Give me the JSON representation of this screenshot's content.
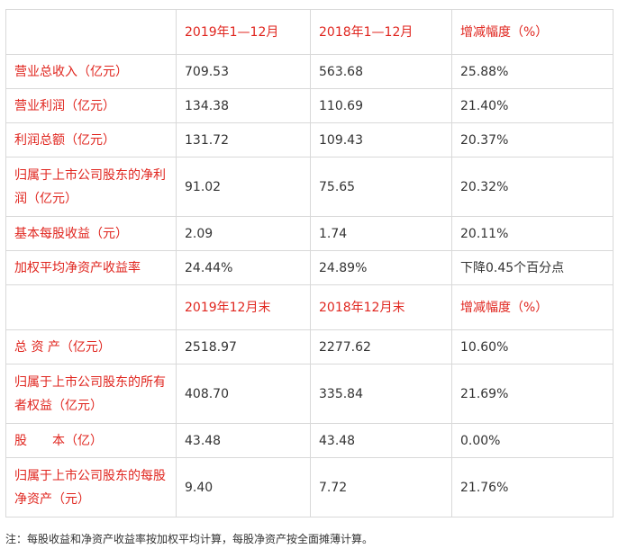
{
  "header1": {
    "corner": "",
    "col1": "2019年1—12月",
    "col2": "2018年1—12月",
    "col3": "增减幅度（%）"
  },
  "rows1": [
    {
      "label": "营业总收入（亿元）",
      "v1": "709.53",
      "v2": "563.68",
      "v3": "25.88%"
    },
    {
      "label": "营业利润（亿元）",
      "v1": "134.38",
      "v2": "110.69",
      "v3": "21.40%"
    },
    {
      "label": "利润总额（亿元）",
      "v1": "131.72",
      "v2": "109.43",
      "v3": "20.37%"
    },
    {
      "label": "归属于上市公司股东的净利润（亿元）",
      "v1": "91.02",
      "v2": "75.65",
      "v3": "20.32%"
    },
    {
      "label": "基本每股收益（元）",
      "v1": "2.09",
      "v2": "1.74",
      "v3": "20.11%"
    },
    {
      "label": "加权平均净资产收益率",
      "v1": "24.44%",
      "v2": "24.89%",
      "v3": "下降0.45个百分点"
    }
  ],
  "header2": {
    "corner": "",
    "col1": "2019年12月末",
    "col2": "2018年12月末",
    "col3": "增减幅度（%）"
  },
  "rows2": [
    {
      "label": "总 资 产（亿元）",
      "v1": "2518.97",
      "v2": "2277.62",
      "v3": "10.60%"
    },
    {
      "label": "归属于上市公司股东的所有者权益（亿元）",
      "v1": "408.70",
      "v2": "335.84",
      "v3": "21.69%"
    },
    {
      "label": "股　　本（亿）",
      "v1": "43.48",
      "v2": "43.48",
      "v3": "0.00%"
    },
    {
      "label": "归属于上市公司股东的每股净资产（元）",
      "v1": "9.40",
      "v2": "7.72",
      "v3": "21.76%"
    }
  ],
  "footnote": "注：每股收益和净资产收益率按加权平均计算，每股净资产按全面摊薄计算。",
  "colors": {
    "accent_red": "#e0261f",
    "text": "#333333",
    "border": "#d9d9d9"
  }
}
